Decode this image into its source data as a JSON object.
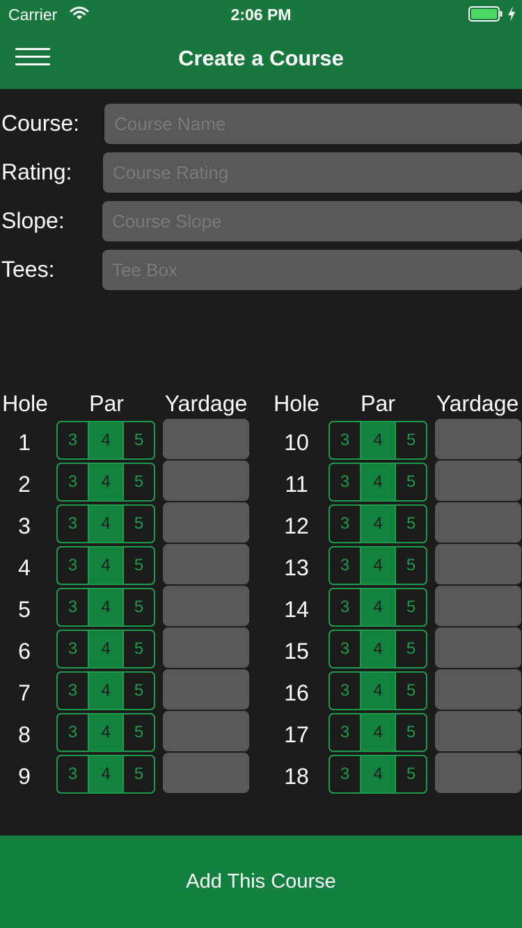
{
  "status_bar": {
    "carrier": "Carrier",
    "time": "2:06 PM",
    "battery_icon": "battery-charging-icon"
  },
  "nav": {
    "title": "Create a Course",
    "menu_icon": "hamburger-menu-icon"
  },
  "form": {
    "fields": [
      {
        "label": "Course:",
        "placeholder": "Course Name",
        "value": ""
      },
      {
        "label": "Rating:",
        "placeholder": "Course Rating",
        "value": ""
      },
      {
        "label": "Slope:",
        "placeholder": "Course Slope",
        "value": ""
      },
      {
        "label": "Tees:",
        "placeholder": "Tee Box",
        "value": ""
      }
    ]
  },
  "table": {
    "headers": {
      "hole": "Hole",
      "par": "Par",
      "yardage": "Yardage"
    },
    "par_options": [
      "3",
      "4",
      "5"
    ],
    "selected_par": "4",
    "front_nine": [
      "1",
      "2",
      "3",
      "4",
      "5",
      "6",
      "7",
      "8",
      "9"
    ],
    "back_nine": [
      "10",
      "11",
      "12",
      "13",
      "14",
      "15",
      "16",
      "17",
      "18"
    ]
  },
  "footer": {
    "add_button_label": "Add This Course"
  },
  "colors": {
    "header_green": "#17773c",
    "accent_green": "#1d9b4a",
    "selected_green": "#12833f",
    "background": "#1c1c1c",
    "input_gray": "#595959"
  }
}
